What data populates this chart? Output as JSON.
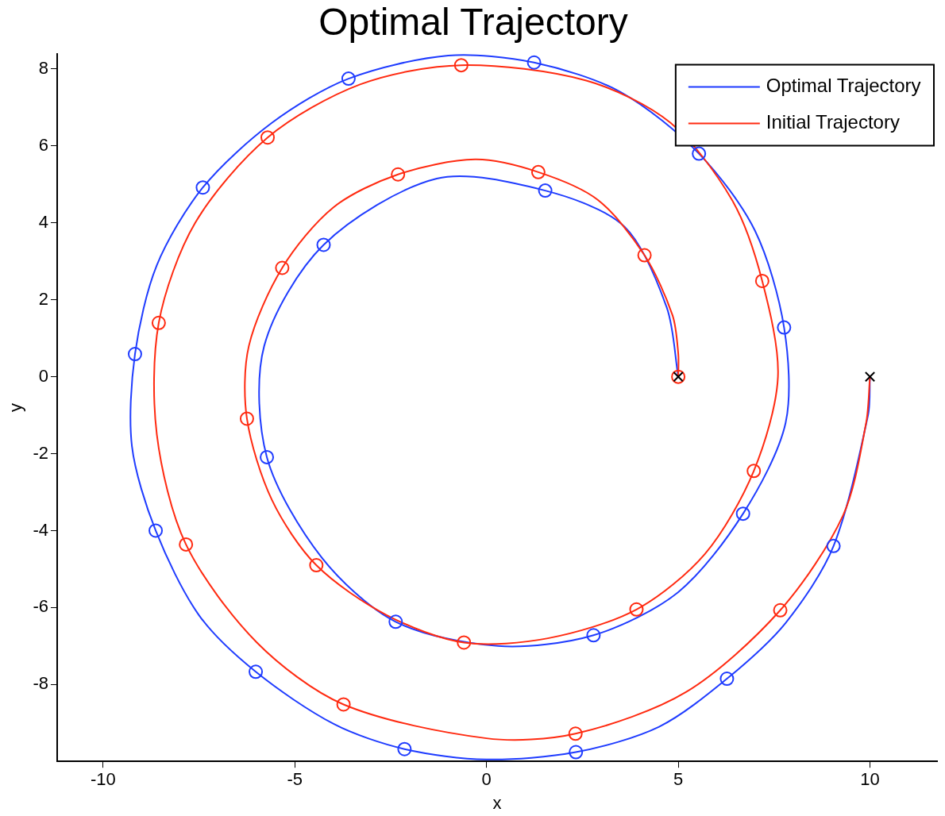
{
  "chart_data": {
    "type": "line",
    "title": "Optimal Trajectory",
    "xlabel": "x",
    "ylabel": "y",
    "xlim": [
      -11.2,
      11.75
    ],
    "ylim": [
      -10,
      8.4
    ],
    "xticks": [
      -10,
      -5,
      0,
      5,
      10
    ],
    "yticks": [
      -8,
      -6,
      -4,
      -2,
      0,
      2,
      4,
      6,
      8
    ],
    "grid": false,
    "legend": "top right",
    "line_style": "solid",
    "series": [
      {
        "name": "Optimal Trajectory",
        "color": "#1f3cff",
        "marker": "none",
        "x": [
          10,
          9.95,
          9.05,
          7.8,
          6.27,
          4.5,
          2.33,
          0,
          -2.14,
          -3.98,
          -6.02,
          -7.5,
          -8.63,
          -9.25,
          -9.17,
          -8.6,
          -7.4,
          -5.6,
          -3.6,
          -1.0,
          1.24,
          3.5,
          5.54,
          7.0,
          7.76,
          7.8,
          6.69,
          5.0,
          2.79,
          0.3,
          -2.37,
          -4.3,
          -5.73,
          -5.8,
          -4.25,
          -1.3,
          1.53,
          3.6,
          4.7,
          5
        ],
        "values": [
          0,
          -1.0,
          -4.4,
          -6.4,
          -7.85,
          -9.1,
          -9.76,
          -9.95,
          -9.68,
          -9.03,
          -7.67,
          -6.2,
          -4.0,
          -1.8,
          0.59,
          2.9,
          4.92,
          6.6,
          7.75,
          8.35,
          8.17,
          7.4,
          5.8,
          3.8,
          1.28,
          -1.2,
          -3.56,
          -5.6,
          -6.72,
          -7.0,
          -6.37,
          -4.7,
          -2.09,
          0.8,
          3.43,
          5.15,
          4.84,
          3.9,
          1.8,
          0
        ]
      },
      {
        "name": "Initial Trajectory",
        "color": "#ff2a10",
        "marker": "none",
        "x": [
          10,
          9.9,
          9.3,
          7.66,
          5.2,
          2.32,
          0,
          -3.73,
          -6.0,
          -7.84,
          -8.6,
          -8.55,
          -7.6,
          -5.71,
          -3.3,
          -0.66,
          2.6,
          4.8,
          6.4,
          7.19,
          7.6,
          6.97,
          5.7,
          3.91,
          1.6,
          -0.59,
          -2.6,
          -4.44,
          -5.6,
          -6.25,
          -6.2,
          -5.33,
          -4.0,
          -2.31,
          -0.3,
          1.35,
          2.9,
          4.12,
          4.85,
          5,
          5
        ],
        "values": [
          0,
          -1.2,
          -3.6,
          -6.07,
          -8.2,
          -9.28,
          -9.4,
          -8.52,
          -6.9,
          -4.36,
          -1.5,
          1.4,
          4.0,
          6.22,
          7.6,
          8.1,
          7.7,
          6.6,
          4.6,
          2.49,
          0,
          -2.45,
          -4.6,
          -6.05,
          -6.8,
          -6.91,
          -6.2,
          -4.9,
          -3.2,
          -1.09,
          0.8,
          2.83,
          4.4,
          5.26,
          5.65,
          5.32,
          4.6,
          3.16,
          1.6,
          0.6,
          0
        ]
      },
      {
        "type": "scatter",
        "color": "#1f3cff",
        "marker": "circle",
        "x": [
          9.05,
          6.27,
          2.33,
          -2.14,
          -6.02,
          -8.63,
          -9.17,
          -7.4,
          -3.6,
          1.24,
          5.54,
          7.76,
          6.69,
          2.79,
          -2.37,
          -5.73,
          -4.25,
          1.53
        ],
        "values": [
          -4.4,
          -7.85,
          -9.76,
          -9.68,
          -7.67,
          -4.0,
          0.59,
          4.92,
          7.75,
          8.17,
          5.8,
          1.28,
          -3.56,
          -6.72,
          -6.37,
          -2.09,
          3.43,
          4.84
        ]
      },
      {
        "type": "scatter",
        "color": "#ff2a10",
        "marker": "circle",
        "x": [
          7.66,
          2.32,
          -3.73,
          -7.84,
          -8.55,
          -5.71,
          -0.66,
          7.19,
          6.97,
          3.91,
          -0.59,
          -4.44,
          -6.25,
          -5.33,
          -2.31,
          1.35,
          4.12,
          5
        ],
        "values": [
          -6.07,
          -9.28,
          -8.52,
          -4.36,
          1.4,
          6.22,
          8.1,
          2.49,
          -2.45,
          -6.05,
          -6.91,
          -4.9,
          -1.09,
          2.83,
          5.26,
          5.32,
          3.16,
          0
        ]
      },
      {
        "type": "scatter",
        "color": "#000000",
        "marker": "cross",
        "x": [
          10,
          5
        ],
        "values": [
          0,
          0
        ]
      }
    ]
  }
}
